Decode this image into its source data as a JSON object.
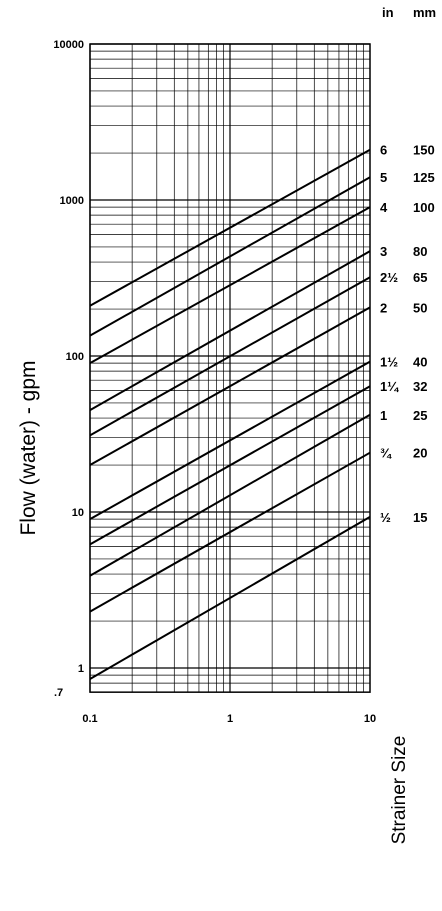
{
  "chart_data": {
    "type": "line",
    "x_scale": "log",
    "y_scale": "log",
    "xlim": [
      0.1,
      10
    ],
    "ylim": [
      0.7,
      10000
    ],
    "grid": true,
    "ylabel": "Flow (water) - gpm",
    "legend_title": "Strainer Size",
    "x_ticks": [
      "0.1",
      "1",
      "10"
    ],
    "y_ticks": [
      {
        "value": 10000,
        "label": "10000"
      },
      {
        "value": 1000,
        "label": "1000"
      },
      {
        "value": 100,
        "label": "100"
      },
      {
        "value": 10,
        "label": "10"
      },
      {
        "value": 1,
        "label": "1"
      },
      {
        "value": 0.7,
        "label": ".7"
      }
    ],
    "header_in": "in",
    "header_mm": "mm",
    "series": [
      {
        "in": "6",
        "mm": "150",
        "x": [
          0.1,
          10
        ],
        "y": [
          210,
          2100
        ]
      },
      {
        "in": "5",
        "mm": "125",
        "x": [
          0.1,
          10
        ],
        "y": [
          135,
          1400
        ]
      },
      {
        "in": "4",
        "mm": "100",
        "x": [
          0.1,
          10
        ],
        "y": [
          90,
          900
        ]
      },
      {
        "in": "3",
        "mm": "80",
        "x": [
          0.1,
          10
        ],
        "y": [
          45,
          470
        ]
      },
      {
        "in": "2½",
        "mm": "65",
        "x": [
          0.1,
          10
        ],
        "y": [
          31,
          320
        ]
      },
      {
        "in": "2",
        "mm": "50",
        "x": [
          0.1,
          10
        ],
        "y": [
          20,
          205
        ]
      },
      {
        "in": "1½",
        "mm": "40",
        "x": [
          0.1,
          10
        ],
        "y": [
          9,
          92
        ]
      },
      {
        "in": "1¼",
        "mm": "32",
        "x": [
          0.1,
          10
        ],
        "y": [
          6.2,
          64
        ]
      },
      {
        "in": "1",
        "mm": "25",
        "x": [
          0.1,
          10
        ],
        "y": [
          3.9,
          42
        ]
      },
      {
        "in": "¾",
        "mm": "20",
        "x": [
          0.1,
          10
        ],
        "y": [
          2.3,
          24
        ]
      },
      {
        "in": "½",
        "mm": "15",
        "x": [
          0.1,
          10
        ],
        "y": [
          0.85,
          9.3
        ]
      }
    ]
  }
}
